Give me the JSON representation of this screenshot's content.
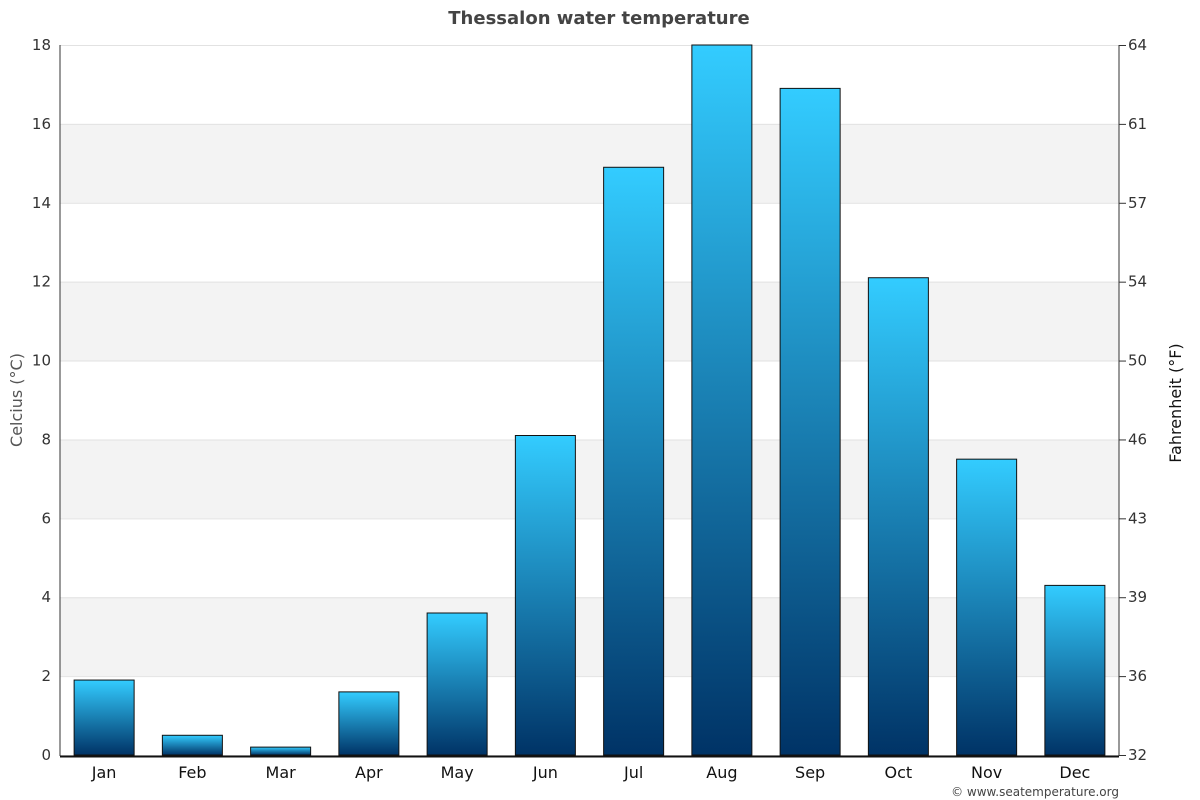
{
  "chart_data": {
    "type": "bar",
    "title": "Thessalon water temperature",
    "categories": [
      "Jan",
      "Feb",
      "Mar",
      "Apr",
      "May",
      "Jun",
      "Jul",
      "Aug",
      "Sep",
      "Oct",
      "Nov",
      "Dec"
    ],
    "values": [
      1.9,
      0.5,
      0.2,
      1.6,
      3.6,
      8.1,
      14.9,
      18.0,
      16.9,
      12.1,
      7.5,
      4.3
    ],
    "ylabel": "Celcius (°C)",
    "ylabel_right": "Fahrenheit (°F)",
    "ylim": [
      0,
      18
    ],
    "yticks": [
      0,
      2,
      4,
      6,
      8,
      10,
      12,
      14,
      16,
      18
    ],
    "yticks_right": [
      "32",
      "36",
      "39",
      "43",
      "46",
      "50",
      "54",
      "57",
      "61",
      "64"
    ],
    "grid": true,
    "bar_gradient": {
      "top": "#33ccff",
      "bottom": "#003366"
    },
    "band_color": "#f3f3f3"
  },
  "footer": {
    "credit": "© www.seatemperature.org"
  }
}
